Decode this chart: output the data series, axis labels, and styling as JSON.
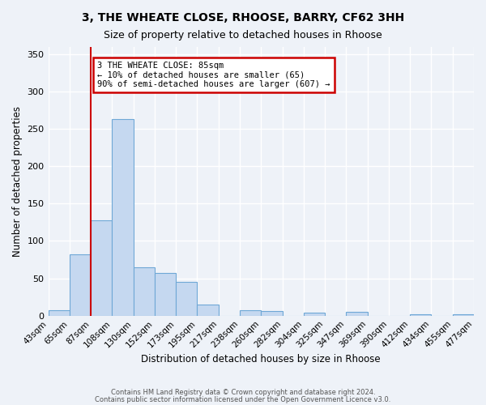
{
  "title": "3, THE WHEATE CLOSE, RHOOSE, BARRY, CF62 3HH",
  "subtitle": "Size of property relative to detached houses in Rhoose",
  "xlabel": "Distribution of detached houses by size in Rhoose",
  "ylabel": "Number of detached properties",
  "bin_labels": [
    "43sqm",
    "65sqm",
    "87sqm",
    "108sqm",
    "130sqm",
    "152sqm",
    "173sqm",
    "195sqm",
    "217sqm",
    "238sqm",
    "260sqm",
    "282sqm",
    "304sqm",
    "325sqm",
    "347sqm",
    "369sqm",
    "390sqm",
    "412sqm",
    "434sqm",
    "455sqm",
    "477sqm"
  ],
  "bar_heights": [
    7,
    82,
    128,
    263,
    65,
    57,
    45,
    15,
    0,
    7,
    6,
    0,
    4,
    0,
    5,
    0,
    0,
    2,
    0,
    2
  ],
  "bar_color": "#c5d8f0",
  "bar_edge_color": "#6fa8d6",
  "vline_x": 2,
  "vline_color": "#cc0000",
  "ylim": [
    0,
    360
  ],
  "yticks": [
    0,
    50,
    100,
    150,
    200,
    250,
    300,
    350
  ],
  "annotation_title": "3 THE WHEATE CLOSE: 85sqm",
  "annotation_line1": "← 10% of detached houses are smaller (65)",
  "annotation_line2": "90% of semi-detached houses are larger (607) →",
  "annotation_box_color": "#cc0000",
  "footer1": "Contains HM Land Registry data © Crown copyright and database right 2024.",
  "footer2": "Contains public sector information licensed under the Open Government Licence v3.0.",
  "background_color": "#eef2f8"
}
